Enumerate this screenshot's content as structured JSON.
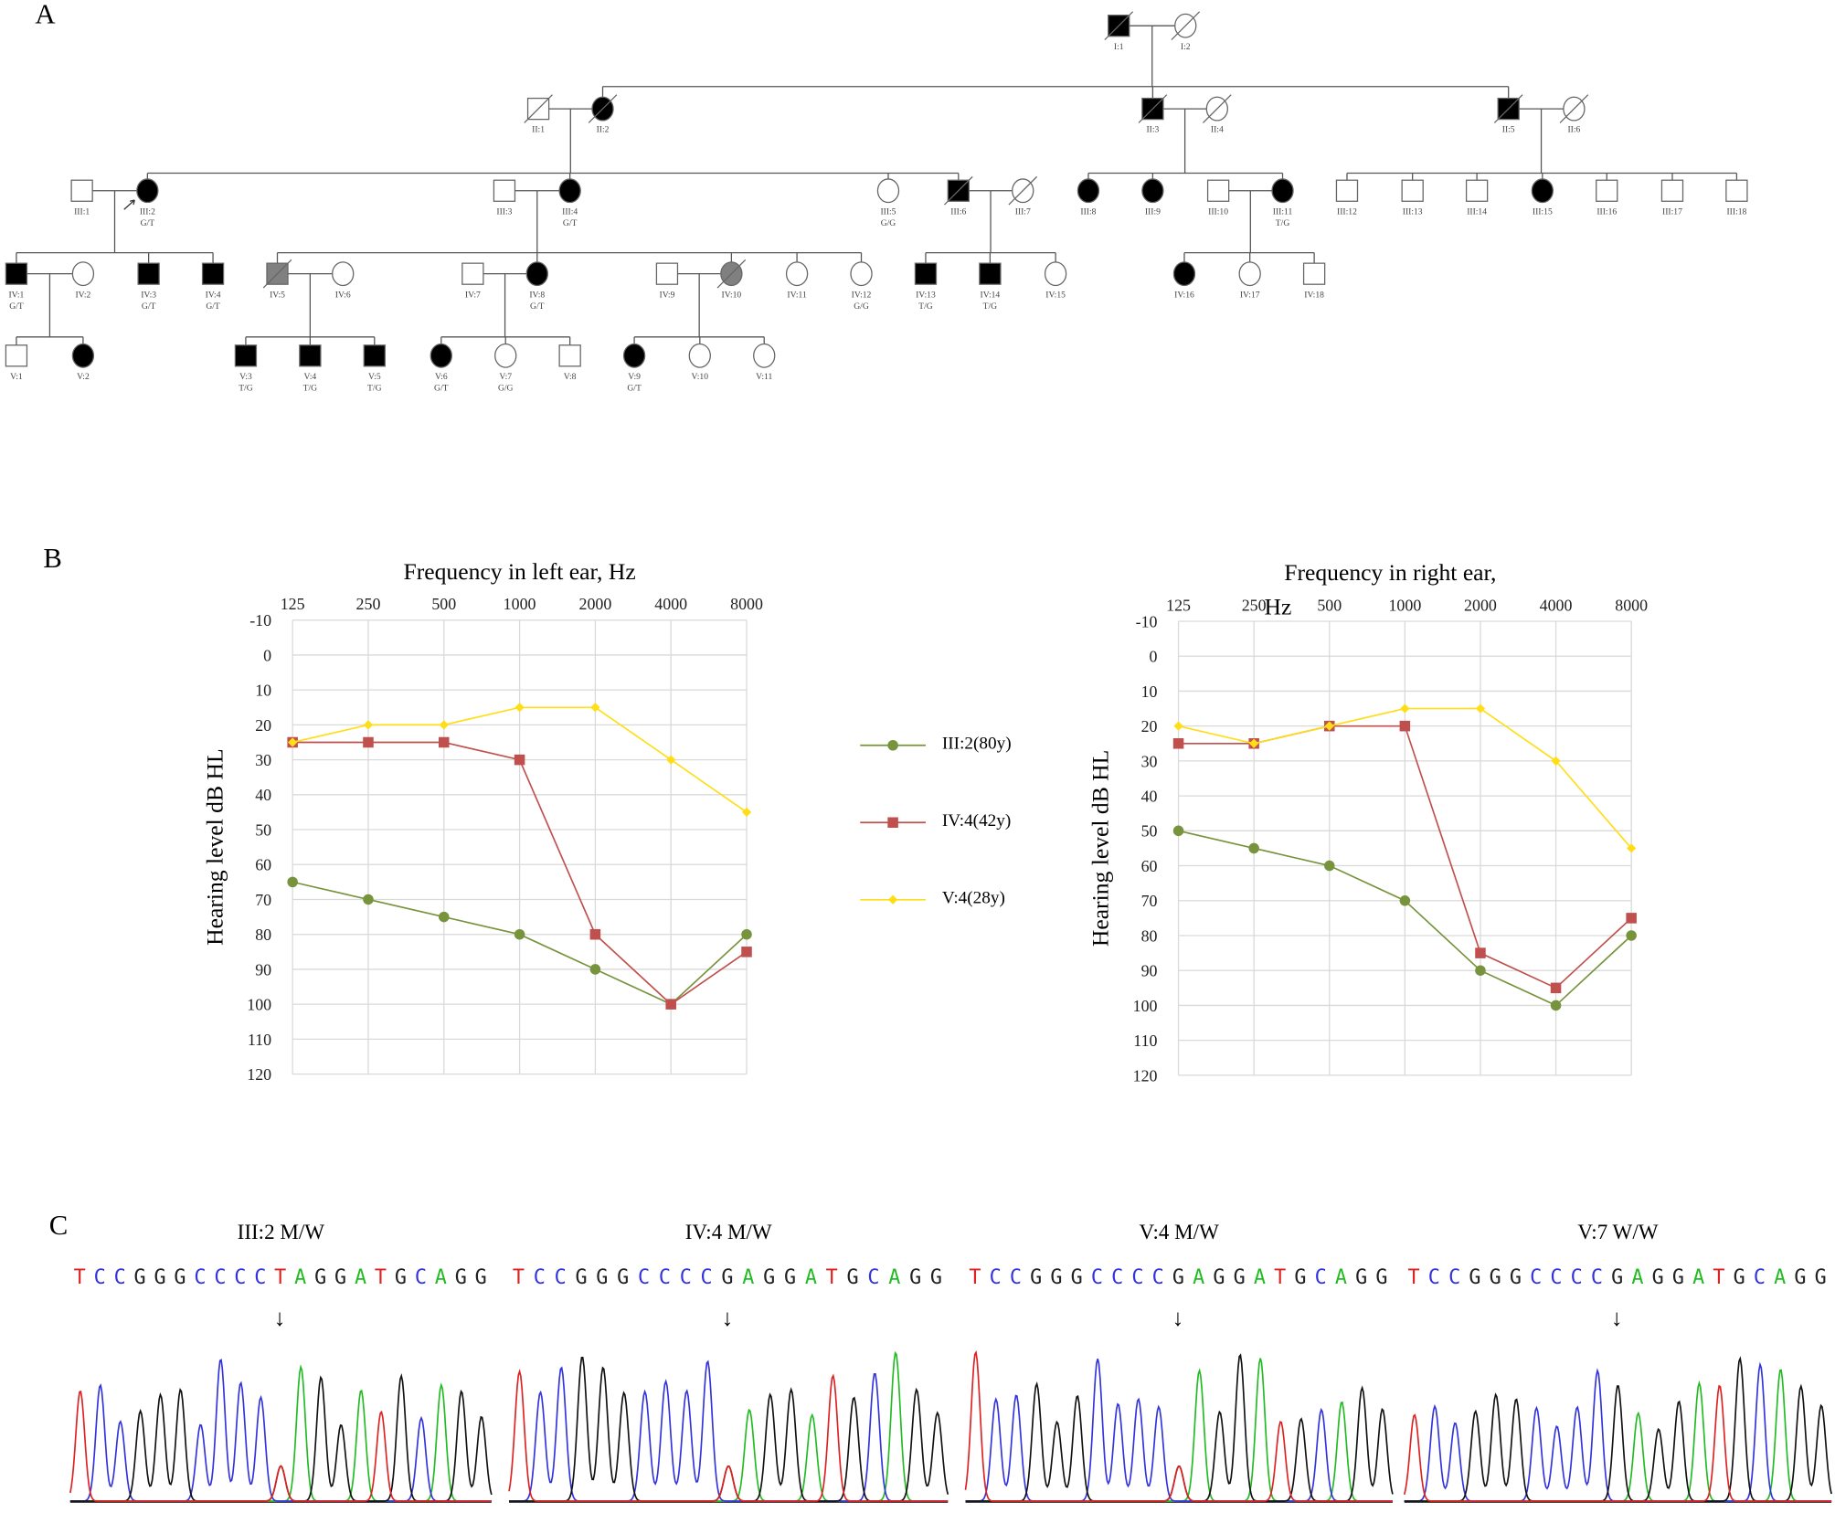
{
  "panels": {
    "a": "A",
    "b": "B",
    "c": "C"
  },
  "pedigree": {
    "individuals": [
      {
        "id": "I:1",
        "sex": "M",
        "status": "affected",
        "deceased": true
      },
      {
        "id": "I:2",
        "sex": "F",
        "status": "unaffected",
        "deceased": true
      },
      {
        "id": "II:1",
        "sex": "M",
        "status": "unaffected",
        "deceased": true
      },
      {
        "id": "II:2",
        "sex": "F",
        "status": "affected",
        "deceased": true
      },
      {
        "id": "II:3",
        "sex": "M",
        "status": "affected",
        "deceased": true
      },
      {
        "id": "II:4",
        "sex": "F",
        "status": "unaffected",
        "deceased": true
      },
      {
        "id": "II:5",
        "sex": "M",
        "status": "affected",
        "deceased": true
      },
      {
        "id": "II:6",
        "sex": "F",
        "status": "unaffected",
        "deceased": true
      },
      {
        "id": "III:1",
        "sex": "M",
        "status": "unaffected"
      },
      {
        "id": "III:2",
        "sex": "F",
        "status": "affected",
        "genotype": "G/T",
        "proband": true
      },
      {
        "id": "III:3",
        "sex": "M",
        "status": "unaffected"
      },
      {
        "id": "III:4",
        "sex": "F",
        "status": "affected",
        "genotype": "G/T"
      },
      {
        "id": "III:5",
        "sex": "F",
        "status": "unaffected",
        "genotype": "G/G"
      },
      {
        "id": "III:6",
        "sex": "M",
        "status": "affected",
        "deceased": true
      },
      {
        "id": "III:7",
        "sex": "F",
        "status": "unaffected",
        "deceased": true
      },
      {
        "id": "III:8",
        "sex": "F",
        "status": "affected"
      },
      {
        "id": "III:9",
        "sex": "F",
        "status": "affected"
      },
      {
        "id": "III:10",
        "sex": "M",
        "status": "unaffected"
      },
      {
        "id": "III:11",
        "sex": "F",
        "status": "affected",
        "genotype": "T/G"
      },
      {
        "id": "III:12",
        "sex": "M",
        "status": "unaffected"
      },
      {
        "id": "III:13",
        "sex": "M",
        "status": "unaffected"
      },
      {
        "id": "III:14",
        "sex": "M",
        "status": "unaffected"
      },
      {
        "id": "III:15",
        "sex": "F",
        "status": "affected"
      },
      {
        "id": "III:16",
        "sex": "M",
        "status": "unaffected"
      },
      {
        "id": "III:17",
        "sex": "M",
        "status": "unaffected"
      },
      {
        "id": "III:18",
        "sex": "M",
        "status": "unaffected"
      },
      {
        "id": "IV:1",
        "sex": "M",
        "status": "affected",
        "genotype": "G/T"
      },
      {
        "id": "IV:2",
        "sex": "F",
        "status": "unaffected"
      },
      {
        "id": "IV:3",
        "sex": "M",
        "status": "affected",
        "genotype": "G/T"
      },
      {
        "id": "IV:4",
        "sex": "M",
        "status": "affected",
        "genotype": "G/T"
      },
      {
        "id": "IV:5",
        "sex": "M",
        "status": "uncertain",
        "deceased": true
      },
      {
        "id": "IV:6",
        "sex": "F",
        "status": "unaffected"
      },
      {
        "id": "IV:7",
        "sex": "M",
        "status": "unaffected"
      },
      {
        "id": "IV:8",
        "sex": "F",
        "status": "affected",
        "genotype": "G/T"
      },
      {
        "id": "IV:9",
        "sex": "M",
        "status": "unaffected"
      },
      {
        "id": "IV:10",
        "sex": "F",
        "status": "uncertain",
        "deceased": true
      },
      {
        "id": "IV:11",
        "sex": "F",
        "status": "unaffected"
      },
      {
        "id": "IV:12",
        "sex": "F",
        "status": "unaffected",
        "genotype": "G/G"
      },
      {
        "id": "IV:13",
        "sex": "M",
        "status": "affected",
        "genotype": "T/G"
      },
      {
        "id": "IV:14",
        "sex": "M",
        "status": "affected",
        "genotype": "T/G"
      },
      {
        "id": "IV:15",
        "sex": "F",
        "status": "unaffected"
      },
      {
        "id": "IV:16",
        "sex": "F",
        "status": "affected"
      },
      {
        "id": "IV:17",
        "sex": "F",
        "status": "unaffected"
      },
      {
        "id": "IV:18",
        "sex": "M",
        "status": "unaffected"
      },
      {
        "id": "V:1",
        "sex": "M",
        "status": "unaffected"
      },
      {
        "id": "V:2",
        "sex": "F",
        "status": "affected"
      },
      {
        "id": "V:3",
        "sex": "M",
        "status": "affected",
        "genotype": "T/G"
      },
      {
        "id": "V:4",
        "sex": "M",
        "status": "affected",
        "genotype": "T/G"
      },
      {
        "id": "V:5",
        "sex": "M",
        "status": "affected",
        "genotype": "T/G"
      },
      {
        "id": "V:6",
        "sex": "F",
        "status": "affected",
        "genotype": "G/T"
      },
      {
        "id": "V:7",
        "sex": "F",
        "status": "unaffected",
        "genotype": "G/G"
      },
      {
        "id": "V:8",
        "sex": "M",
        "status": "unaffected"
      },
      {
        "id": "V:9",
        "sex": "F",
        "status": "affected",
        "genotype": "G/T"
      },
      {
        "id": "V:10",
        "sex": "F",
        "status": "unaffected"
      },
      {
        "id": "V:11",
        "sex": "F",
        "status": "unaffected"
      }
    ],
    "colors": {
      "affected": "#000000",
      "uncertain": "#808080",
      "unaffected": "#ffffff"
    }
  },
  "chart_data": [
    {
      "type": "line",
      "title": "Frequency in left ear, Hz",
      "ylabel": "Hearing level dB HL",
      "categories": [
        "125",
        "250",
        "500",
        "1000",
        "2000",
        "4000",
        "8000"
      ],
      "ylim": [
        -10,
        120
      ],
      "y_inverted": true,
      "yticks": [
        -10,
        0,
        10,
        20,
        30,
        40,
        50,
        60,
        70,
        80,
        90,
        100,
        110,
        120
      ],
      "grid": true,
      "series": [
        {
          "name": "III:2(80y)",
          "marker": "circle",
          "color": "#77933c",
          "values": [
            65,
            70,
            75,
            80,
            90,
            100,
            80
          ]
        },
        {
          "name": "IV:4(42y)",
          "marker": "square",
          "color": "#c0504d",
          "values": [
            25,
            25,
            25,
            30,
            80,
            100,
            85
          ]
        },
        {
          "name": "V:4(28y)",
          "marker": "diamond",
          "color": "#ffde17",
          "values": [
            25,
            20,
            20,
            15,
            15,
            30,
            45
          ]
        }
      ]
    },
    {
      "type": "line",
      "title": "Frequency in right ear,",
      "title_overflow": "Hz",
      "ylabel": "Hearing level dB HL",
      "categories": [
        "125",
        "250",
        "500",
        "1000",
        "2000",
        "4000",
        "8000"
      ],
      "ylim": [
        -10,
        120
      ],
      "y_inverted": true,
      "yticks": [
        -10,
        0,
        10,
        20,
        30,
        40,
        50,
        60,
        70,
        80,
        90,
        100,
        110,
        120
      ],
      "grid": true,
      "series": [
        {
          "name": "III:2(80y)",
          "marker": "circle",
          "color": "#77933c",
          "values": [
            50,
            55,
            60,
            70,
            90,
            100,
            80
          ]
        },
        {
          "name": "IV:4(42y)",
          "marker": "square",
          "color": "#c0504d",
          "values": [
            25,
            25,
            20,
            20,
            85,
            95,
            75
          ]
        },
        {
          "name": "V:4(28y)",
          "marker": "diamond",
          "color": "#ffde17",
          "values": [
            20,
            25,
            20,
            15,
            15,
            30,
            55
          ]
        }
      ]
    }
  ],
  "legend": {
    "placement": "center-between-charts"
  },
  "sequencing": {
    "base_colors": {
      "A": "#22bb22",
      "C": "#3333dd",
      "G": "#222222",
      "T": "#dd2222"
    },
    "arrow": "↓",
    "traces": [
      {
        "title": "III:2 M/W",
        "sequence": "TCCGGGCCCCTAGGATGCAGG",
        "heterozygous": true
      },
      {
        "title": "IV:4 M/W",
        "sequence": "TCCGGGCCCCGAGGATGCAGG",
        "heterozygous": true
      },
      {
        "title": "V:4 M/W",
        "sequence": "TCCGGGCCCCGAGGATGCAGG",
        "heterozygous": true
      },
      {
        "title": "V:7 W/W",
        "sequence": "TCCGGGCCCCGAGGATGCAGG",
        "heterozygous": false
      }
    ]
  }
}
